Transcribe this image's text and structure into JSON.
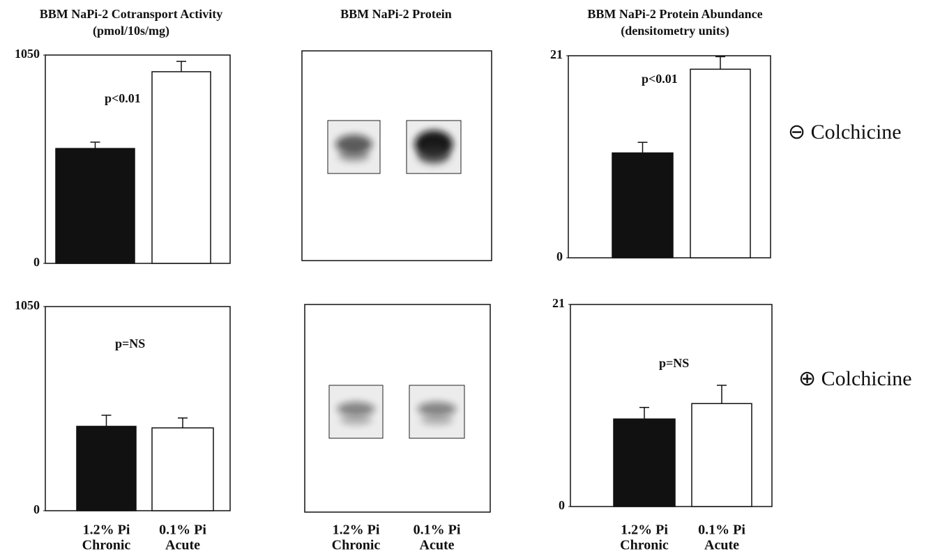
{
  "chart_data": [
    {
      "type": "bar",
      "title": "BBM NaPi-2 Cotransport Activity",
      "subtitle": "(pmol/10s/mg)",
      "annotation": "p<0.01",
      "values": [
        579,
        966
      ],
      "errors": [
        32,
        52
      ],
      "colors": [
        "#111111",
        "#ffffff"
      ],
      "ylim": [
        0,
        1050
      ],
      "yticks": [
        0,
        1050
      ]
    },
    {
      "type": "blot",
      "title": "BBM NaPi-2 Protein"
    },
    {
      "type": "bar",
      "title": "BBM NaPi-2 Protein Abundance",
      "subtitle": "(densitometry units)",
      "annotation": "p<0.01",
      "values": [
        10.9,
        19.6
      ],
      "errors": [
        1.1,
        1.3
      ],
      "colors": [
        "#111111",
        "#ffffff"
      ],
      "ylim": [
        0,
        21
      ],
      "yticks": [
        0,
        21
      ]
    },
    {
      "type": "bar",
      "annotation": "p=NS",
      "categories": [
        [
          "1.2% Pi",
          "Chronic"
        ],
        [
          "0.1% Pi",
          "Acute"
        ]
      ],
      "values": [
        434,
        426
      ],
      "errors": [
        57,
        51
      ],
      "colors": [
        "#111111",
        "#ffffff"
      ],
      "ylim": [
        0,
        1050
      ],
      "yticks": [
        0,
        1050
      ]
    },
    {
      "type": "blot",
      "categories": [
        [
          "1.2% Pi",
          "Chronic"
        ],
        [
          "0.1% Pi",
          "Acute"
        ]
      ]
    },
    {
      "type": "bar",
      "annotation": "p=NS",
      "categories": [
        [
          "1.2% Pi",
          "Chronic"
        ],
        [
          "0.1% Pi",
          "Acute"
        ]
      ],
      "values": [
        9.1,
        10.7
      ],
      "errors": [
        1.2,
        1.9
      ],
      "colors": [
        "#111111",
        "#ffffff"
      ],
      "ylim": [
        0,
        21
      ],
      "yticks": [
        0,
        21
      ]
    }
  ],
  "row_labels": [
    "⊖ Colchicine",
    "⊕ Colchicine"
  ]
}
